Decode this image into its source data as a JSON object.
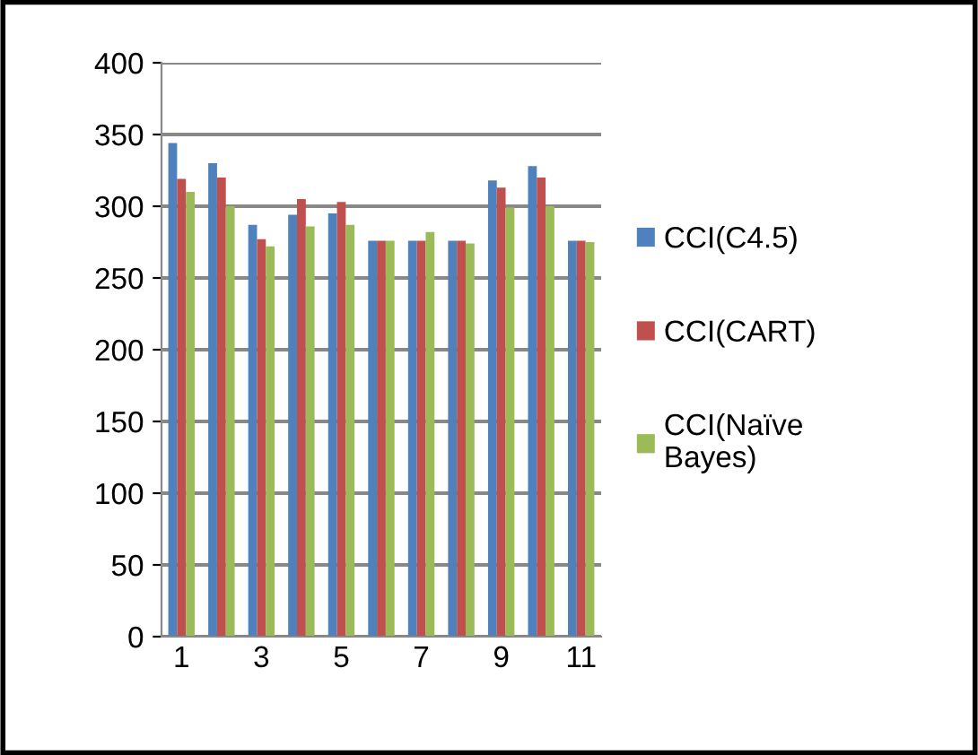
{
  "chart_data": {
    "type": "bar",
    "categories": [
      "1",
      null,
      "3",
      null,
      "5",
      null,
      "7",
      null,
      "9",
      null,
      "11"
    ],
    "series": [
      {
        "name": "CCI(C4.5)",
        "color": "#4f81bd",
        "values": [
          344,
          330,
          287,
          294,
          295,
          276,
          276,
          276,
          318,
          328,
          276
        ]
      },
      {
        "name": "CCI(CART)",
        "color": "#c0504d",
        "values": [
          319,
          320,
          277,
          305,
          303,
          276,
          276,
          276,
          313,
          320,
          276
        ]
      },
      {
        "name": "CCI(Naïve\nBayes)",
        "color": "#9bbb59",
        "values": [
          310,
          300,
          272,
          286,
          287,
          276,
          282,
          274,
          299,
          300,
          275
        ]
      }
    ],
    "ylim": [
      0,
      400
    ],
    "yticks": [
      0,
      50,
      100,
      150,
      200,
      250,
      300,
      350,
      400
    ],
    "grid": "y",
    "legend": "right"
  }
}
